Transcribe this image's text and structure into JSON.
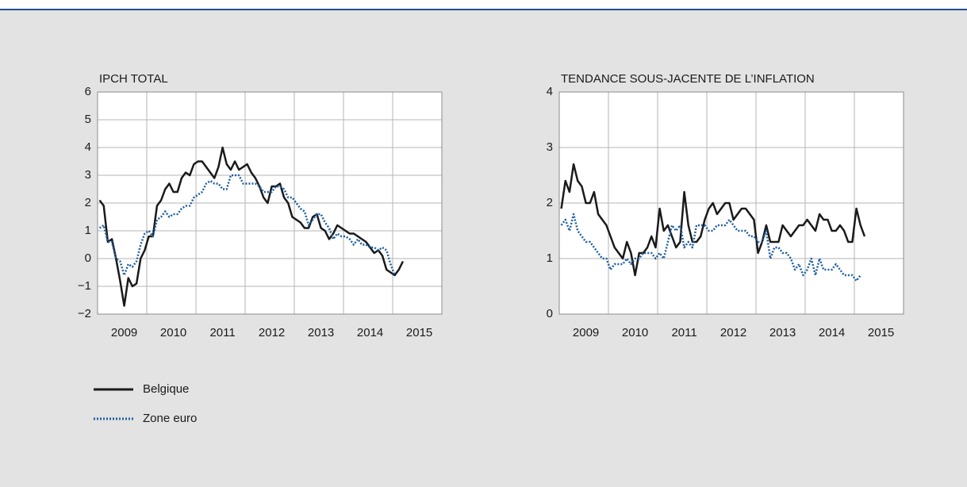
{
  "chart_data": [
    {
      "type": "line",
      "title": "IPCH TOTAL",
      "categories": [
        null,
        null,
        null,
        null,
        null,
        null,
        "2009",
        null,
        null,
        null,
        null,
        null,
        null,
        null,
        null,
        null,
        null,
        null,
        "2010",
        null,
        null,
        null,
        null,
        null,
        null,
        null,
        null,
        null,
        null,
        null,
        "2011",
        null,
        null,
        null,
        null,
        null,
        null,
        null,
        null,
        null,
        null,
        null,
        "2012",
        null,
        null,
        null,
        null,
        null,
        null,
        null,
        null,
        null,
        null,
        null,
        "2013",
        null,
        null,
        null,
        null,
        null,
        null,
        null,
        null,
        null,
        null,
        null,
        "2014",
        null,
        null,
        null,
        null,
        null,
        null,
        null,
        null,
        null,
        null,
        null,
        "2015",
        null,
        null,
        null,
        null,
        null
      ],
      "ylim": [
        -2,
        6
      ],
      "yticks": [
        {
          "value": -2,
          "label": "−2"
        },
        {
          "value": -1,
          "label": "−1"
        },
        0,
        1,
        2,
        3,
        4,
        5,
        6
      ],
      "grid": true,
      "series": [
        {
          "name": "Belgique",
          "color": "#1a1a1a",
          "style": "solid",
          "values": [
            2.1,
            1.9,
            0.6,
            0.7,
            0.0,
            -0.8,
            -1.7,
            -0.7,
            -1.0,
            -0.9,
            0.0,
            0.3,
            0.8,
            0.8,
            1.9,
            2.1,
            2.5,
            2.7,
            2.4,
            2.4,
            2.9,
            3.1,
            3.0,
            3.4,
            3.5,
            3.5,
            3.3,
            3.1,
            2.9,
            3.3,
            4.0,
            3.4,
            3.2,
            3.5,
            3.2,
            3.3,
            3.4,
            3.1,
            2.9,
            2.6,
            2.2,
            2.0,
            2.6,
            2.6,
            2.7,
            2.2,
            2.0,
            1.5,
            1.4,
            1.3,
            1.1,
            1.1,
            1.5,
            1.6,
            1.1,
            1.0,
            0.7,
            0.9,
            1.2,
            1.1,
            1.0,
            0.9,
            0.9,
            0.8,
            0.7,
            0.6,
            0.4,
            0.2,
            0.3,
            0.1,
            -0.4,
            -0.5,
            -0.6,
            -0.4,
            -0.1,
            null,
            null,
            null,
            null,
            null,
            null,
            null,
            null,
            null
          ]
        },
        {
          "name": "Zone euro",
          "color": "#1f5fa0",
          "style": "dotted",
          "values": [
            1.1,
            1.2,
            0.6,
            0.6,
            0.0,
            -0.1,
            -0.6,
            -0.2,
            -0.3,
            -0.1,
            0.5,
            0.9,
            1.0,
            0.8,
            1.4,
            1.5,
            1.7,
            1.5,
            1.6,
            1.6,
            1.8,
            1.9,
            1.9,
            2.2,
            2.3,
            2.4,
            2.7,
            2.8,
            2.7,
            2.7,
            2.5,
            2.5,
            3.0,
            3.0,
            3.0,
            2.7,
            2.7,
            2.7,
            2.7,
            2.6,
            2.4,
            2.4,
            2.4,
            2.6,
            2.6,
            2.5,
            2.2,
            2.2,
            2.0,
            1.8,
            1.7,
            1.2,
            1.4,
            1.6,
            1.6,
            1.3,
            1.1,
            0.7,
            0.9,
            0.8,
            0.8,
            0.7,
            0.5,
            0.7,
            0.5,
            0.5,
            0.4,
            0.4,
            0.3,
            0.4,
            0.3,
            -0.2,
            -0.6,
            null,
            null,
            null,
            null,
            null,
            null,
            null,
            null,
            null,
            null,
            null
          ]
        }
      ]
    },
    {
      "type": "line",
      "title": "TENDANCE SOUS-JACENTE DE L’INFLATION",
      "categories": [
        null,
        null,
        null,
        null,
        null,
        null,
        "2009",
        null,
        null,
        null,
        null,
        null,
        null,
        null,
        null,
        null,
        null,
        null,
        "2010",
        null,
        null,
        null,
        null,
        null,
        null,
        null,
        null,
        null,
        null,
        null,
        "2011",
        null,
        null,
        null,
        null,
        null,
        null,
        null,
        null,
        null,
        null,
        null,
        "2012",
        null,
        null,
        null,
        null,
        null,
        null,
        null,
        null,
        null,
        null,
        null,
        "2013",
        null,
        null,
        null,
        null,
        null,
        null,
        null,
        null,
        null,
        null,
        null,
        "2014",
        null,
        null,
        null,
        null,
        null,
        null,
        null,
        null,
        null,
        null,
        null,
        "2015",
        null,
        null,
        null,
        null,
        null
      ],
      "ylim": [
        0,
        4
      ],
      "yticks": [
        0,
        1,
        2,
        3,
        4
      ],
      "grid": true,
      "series": [
        {
          "name": "Belgique",
          "color": "#1a1a1a",
          "style": "solid",
          "values": [
            1.9,
            2.4,
            2.2,
            2.7,
            2.4,
            2.3,
            2.0,
            2.0,
            2.2,
            1.8,
            1.7,
            1.6,
            1.4,
            1.2,
            1.1,
            1.0,
            1.3,
            1.1,
            0.7,
            1.1,
            1.1,
            1.2,
            1.4,
            1.2,
            1.9,
            1.5,
            1.6,
            1.4,
            1.2,
            1.3,
            2.2,
            1.6,
            1.3,
            1.3,
            1.4,
            1.7,
            1.9,
            2.0,
            1.8,
            1.9,
            2.0,
            2.0,
            1.7,
            1.8,
            1.9,
            1.9,
            1.8,
            1.7,
            1.1,
            1.3,
            1.6,
            1.3,
            1.3,
            1.3,
            1.6,
            1.5,
            1.4,
            1.5,
            1.6,
            1.6,
            1.7,
            1.6,
            1.5,
            1.8,
            1.7,
            1.7,
            1.5,
            1.5,
            1.6,
            1.5,
            1.3,
            1.3,
            1.9,
            1.6,
            1.4,
            null,
            null,
            null,
            null,
            null,
            null,
            null,
            null,
            null
          ]
        },
        {
          "name": "Zone euro",
          "color": "#1f5fa0",
          "style": "dotted",
          "values": [
            1.6,
            1.7,
            1.5,
            1.8,
            1.5,
            1.4,
            1.3,
            1.3,
            1.2,
            1.1,
            1.0,
            1.0,
            0.8,
            0.9,
            0.9,
            0.9,
            1.0,
            0.9,
            1.0,
            1.0,
            1.1,
            1.1,
            1.1,
            1.0,
            1.1,
            1.0,
            1.3,
            1.6,
            1.5,
            1.6,
            1.2,
            1.3,
            1.2,
            1.6,
            1.6,
            1.6,
            1.5,
            1.5,
            1.6,
            1.6,
            1.6,
            1.7,
            1.6,
            1.5,
            1.5,
            1.5,
            1.4,
            1.4,
            1.3,
            1.3,
            1.5,
            1.0,
            1.2,
            1.2,
            1.1,
            1.1,
            1.0,
            0.8,
            0.9,
            0.7,
            0.8,
            1.0,
            0.7,
            1.0,
            0.8,
            0.8,
            0.8,
            0.9,
            0.8,
            0.7,
            0.7,
            0.7,
            0.6,
            0.7,
            null,
            null,
            null,
            null,
            null,
            null,
            null,
            null,
            null,
            null
          ]
        }
      ]
    }
  ]
}
